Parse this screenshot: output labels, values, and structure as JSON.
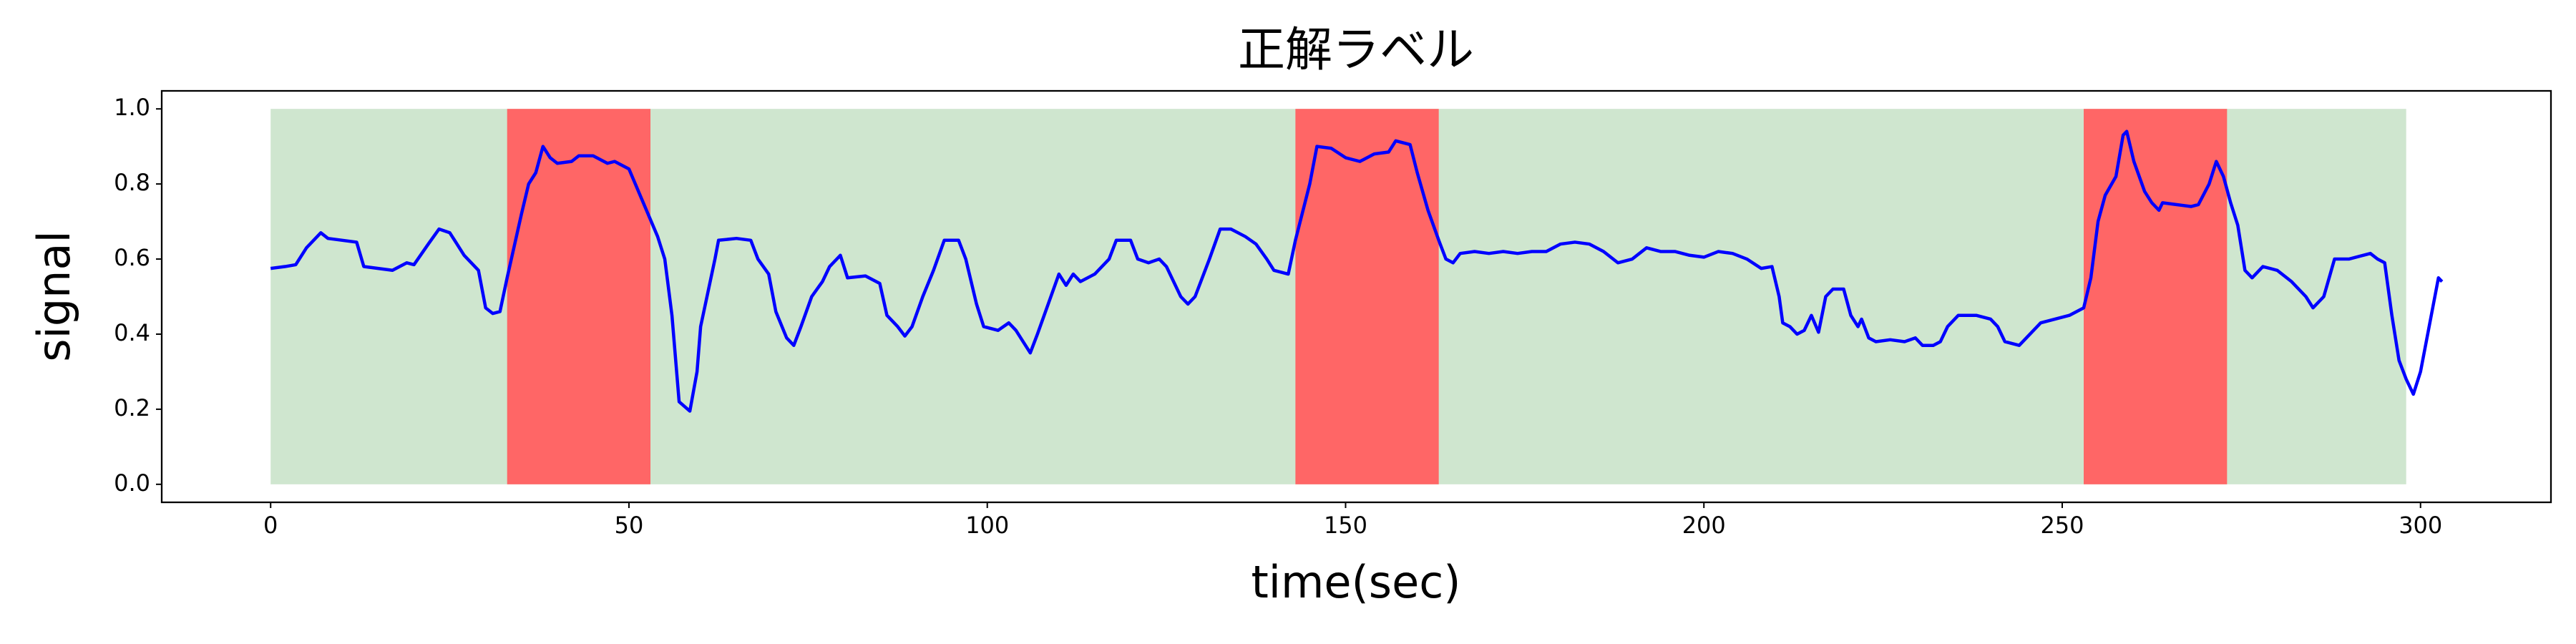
{
  "chart_data": {
    "type": "line",
    "title": "正解ラベル",
    "x_label": "time(sec)",
    "y_label": "signal",
    "xlim": [
      -15.2,
      318.2
    ],
    "ylim": [
      -0.048,
      1.048
    ],
    "xticks": [
      0,
      50,
      100,
      150,
      200,
      250,
      300
    ],
    "yticks": [
      {
        "value": 0,
        "label": "0.0"
      },
      0.2,
      0.4,
      0.6,
      0.8,
      {
        "value": 1,
        "label": "1.0"
      }
    ],
    "bands": [
      {
        "x0": 0,
        "x1": 298,
        "y0": 0,
        "y1": 1,
        "color": "#cfe6cf"
      },
      {
        "x0": 33,
        "x1": 53,
        "y0": 0,
        "y1": 1,
        "color": "#ff6666"
      },
      {
        "x0": 143,
        "x1": 163,
        "y0": 0,
        "y1": 1,
        "color": "#ff6666"
      },
      {
        "x0": 253,
        "x1": 273,
        "y0": 0,
        "y1": 1,
        "color": "#ff6666"
      }
    ],
    "color": "#0000ff",
    "x": [
      0,
      2,
      3.5,
      5,
      7,
      8,
      10,
      12,
      13,
      15,
      17,
      19,
      20,
      22,
      23.5,
      25,
      27,
      29,
      30,
      31,
      32,
      33,
      35,
      36,
      37,
      38,
      39,
      40,
      42,
      43,
      45,
      47,
      48,
      50,
      52,
      54,
      55,
      56,
      57,
      58.5,
      59.5,
      60,
      62,
      62.5,
      65,
      67,
      68,
      69.5,
      70.5,
      72,
      73,
      74,
      75.5,
      77,
      78,
      79.5,
      80.5,
      83,
      85,
      86,
      87.5,
      88.5,
      89.5,
      91,
      92.5,
      94,
      96,
      97,
      98.5,
      99.5,
      101.5,
      103,
      104,
      105,
      106,
      107,
      108.5,
      110,
      111,
      112,
      113,
      115,
      117,
      118,
      120,
      121,
      122.5,
      124,
      125,
      127,
      128,
      129,
      131,
      132.5,
      134,
      136,
      137.5,
      139,
      140,
      142,
      143,
      145,
      146,
      148,
      150,
      152,
      154,
      156,
      157,
      159,
      160,
      161.5,
      163,
      164,
      165,
      166,
      168,
      170,
      172,
      174,
      176,
      178,
      180,
      182,
      184,
      186,
      188,
      190,
      192,
      194,
      196,
      198,
      200,
      202,
      204,
      206,
      208,
      209.5,
      210.5,
      211,
      212,
      213,
      214,
      215,
      216,
      217,
      218,
      219.5,
      220.5,
      221.5,
      222,
      223,
      224,
      226,
      228,
      229.5,
      230.5,
      232,
      233,
      234,
      235.5,
      238,
      240,
      241,
      242,
      244,
      245,
      247,
      249,
      251,
      252,
      253,
      254,
      255,
      256,
      257.5,
      258.5,
      259,
      260,
      261.5,
      262.5,
      263.5,
      264,
      266,
      268,
      269,
      270.5,
      271.5,
      272.5,
      273.5,
      274.5,
      275.5,
      276.5,
      278,
      280,
      282,
      284,
      285,
      286.5,
      288,
      290,
      292,
      293,
      294,
      295,
      296,
      297,
      298,
      299,
      300,
      302,
      302.5,
      303
    ],
    "values": [
      0.575,
      0.58,
      0.585,
      0.63,
      0.67,
      0.655,
      0.65,
      0.645,
      0.58,
      0.575,
      0.57,
      0.59,
      0.585,
      0.64,
      0.68,
      0.67,
      0.61,
      0.57,
      0.47,
      0.455,
      0.46,
      0.55,
      0.72,
      0.8,
      0.83,
      0.9,
      0.87,
      0.855,
      0.86,
      0.875,
      0.875,
      0.855,
      0.86,
      0.84,
      0.75,
      0.66,
      0.6,
      0.45,
      0.22,
      0.195,
      0.3,
      0.42,
      0.6,
      0.65,
      0.655,
      0.65,
      0.6,
      0.56,
      0.46,
      0.39,
      0.37,
      0.42,
      0.5,
      0.54,
      0.58,
      0.61,
      0.55,
      0.555,
      0.535,
      0.45,
      0.42,
      0.395,
      0.42,
      0.5,
      0.57,
      0.65,
      0.65,
      0.6,
      0.48,
      0.42,
      0.41,
      0.43,
      0.41,
      0.38,
      0.35,
      0.4,
      0.48,
      0.56,
      0.53,
      0.56,
      0.54,
      0.56,
      0.6,
      0.65,
      0.65,
      0.6,
      0.59,
      0.6,
      0.58,
      0.5,
      0.48,
      0.5,
      0.6,
      0.68,
      0.68,
      0.66,
      0.64,
      0.6,
      0.57,
      0.56,
      0.65,
      0.8,
      0.9,
      0.895,
      0.87,
      0.86,
      0.88,
      0.885,
      0.915,
      0.905,
      0.83,
      0.73,
      0.65,
      0.6,
      0.59,
      0.615,
      0.62,
      0.615,
      0.62,
      0.615,
      0.62,
      0.62,
      0.64,
      0.645,
      0.64,
      0.62,
      0.59,
      0.6,
      0.63,
      0.62,
      0.62,
      0.61,
      0.605,
      0.62,
      0.615,
      0.6,
      0.575,
      0.58,
      0.5,
      0.43,
      0.42,
      0.4,
      0.41,
      0.45,
      0.405,
      0.5,
      0.52,
      0.52,
      0.45,
      0.42,
      0.44,
      0.39,
      0.38,
      0.385,
      0.38,
      0.39,
      0.37,
      0.37,
      0.38,
      0.42,
      0.45,
      0.45,
      0.44,
      0.42,
      0.38,
      0.37,
      0.39,
      0.43,
      0.44,
      0.45,
      0.46,
      0.47,
      0.55,
      0.7,
      0.77,
      0.82,
      0.93,
      0.94,
      0.86,
      0.78,
      0.75,
      0.73,
      0.75,
      0.745,
      0.74,
      0.745,
      0.8,
      0.86,
      0.82,
      0.75,
      0.69,
      0.57,
      0.55,
      0.58,
      0.57,
      0.54,
      0.5,
      0.47,
      0.5,
      0.6,
      0.6,
      0.61,
      0.615,
      0.6,
      0.59,
      0.45,
      0.33,
      0.28,
      0.24,
      0.3,
      0.5,
      0.55,
      0.54
    ]
  }
}
